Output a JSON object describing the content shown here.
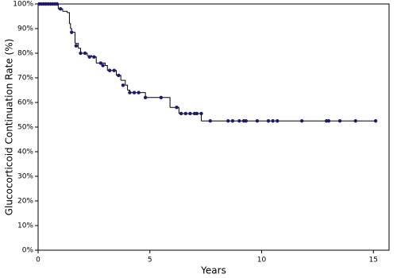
{
  "chart_data": {
    "type": "km",
    "x_label": "Years",
    "y_label": "Glucocorticoid Continuation Rate (%)",
    "xlim": [
      0,
      15.7
    ],
    "ylim": [
      0,
      100
    ],
    "xticks": [
      0,
      5,
      10,
      15
    ],
    "yticks": [
      {
        "value": 0,
        "label": "0%"
      },
      {
        "value": 10,
        "label": "10%"
      },
      {
        "value": 20,
        "label": "20%"
      },
      {
        "value": 30,
        "label": "30%"
      },
      {
        "value": 40,
        "label": "40%"
      },
      {
        "value": 50,
        "label": "50%"
      },
      {
        "value": 60,
        "label": "60%"
      },
      {
        "value": 70,
        "label": "70%"
      },
      {
        "value": 80,
        "label": "80%"
      },
      {
        "value": 90,
        "label": "90%"
      },
      {
        "value": 100,
        "label": "100%"
      }
    ],
    "color": "#000000",
    "marker_color": "#1a1a6e",
    "curve": {
      "x": [
        0,
        0.9,
        1.1,
        1.3,
        1.4,
        1.45,
        1.5,
        1.65,
        1.8,
        1.9,
        2.2,
        2.4,
        2.6,
        3.0,
        3.1,
        3.5,
        3.7,
        3.9,
        4.0,
        4.1,
        4.8,
        5.9,
        6.3,
        7.3,
        15.1
      ],
      "y": [
        100,
        98,
        97,
        96.5,
        92,
        90,
        88.5,
        84,
        82,
        80,
        79,
        78.5,
        76,
        75,
        73,
        71,
        69,
        67,
        65,
        64,
        62,
        58,
        55.5,
        52.5,
        52.5
      ]
    },
    "censored": {
      "x": [
        0.05,
        0.15,
        0.25,
        0.35,
        0.45,
        0.55,
        0.65,
        0.75,
        0.85,
        1.0,
        1.5,
        1.7,
        1.9,
        2.1,
        2.3,
        2.5,
        2.8,
        2.9,
        3.2,
        3.4,
        3.6,
        3.8,
        4.1,
        4.3,
        4.5,
        4.8,
        5.5,
        6.2,
        6.4,
        6.6,
        6.8,
        7.0,
        7.1,
        7.3,
        7.7,
        8.5,
        8.7,
        9.0,
        9.2,
        9.3,
        9.8,
        10.3,
        10.5,
        10.7,
        11.8,
        12.9,
        13.0,
        13.5,
        14.2,
        15.1
      ],
      "y": [
        100,
        100,
        100,
        100,
        100,
        100,
        100,
        100,
        100,
        98,
        88.5,
        83,
        80,
        80,
        78.5,
        78.5,
        76,
        75,
        73,
        73,
        71,
        67,
        64,
        64,
        64,
        62,
        62,
        58,
        55.5,
        55.5,
        55.5,
        55.5,
        55.5,
        55.5,
        52.5,
        52.5,
        52.5,
        52.5,
        52.5,
        52.5,
        52.5,
        52.5,
        52.5,
        52.5,
        52.5,
        52.5,
        52.5,
        52.5,
        52.5,
        52.5
      ]
    }
  }
}
